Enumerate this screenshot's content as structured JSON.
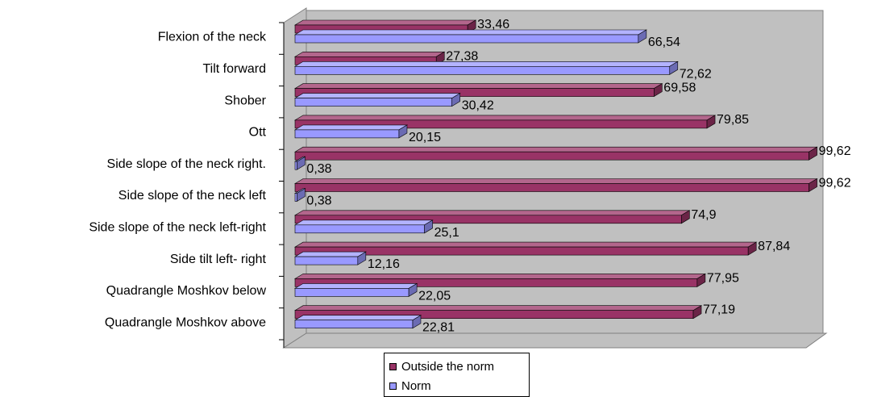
{
  "chart_data": {
    "type": "bar",
    "orientation": "horizontal",
    "style": "3d-clustered",
    "categories": [
      "Flexion of the neck",
      "Tilt forward",
      "Shober",
      "Ott",
      "Side slope of the neck right.",
      "Side slope of the neck left",
      "Side slope of the neck left-right",
      "Side tilt left- right",
      "Quadrangle Moshkov below",
      "Quadrangle Moshkov above"
    ],
    "series": [
      {
        "name": "Outside the norm",
        "color": "#993366",
        "values": [
          33.46,
          27.38,
          69.58,
          79.85,
          99.62,
          99.62,
          74.9,
          87.84,
          77.95,
          77.19
        ],
        "labels": [
          "33,46",
          "27,38",
          "69,58",
          "79,85",
          "99,62",
          "99,62",
          "74,9",
          "87,84",
          "77,95",
          "77,19"
        ]
      },
      {
        "name": "Norm",
        "color": "#9999ff",
        "values": [
          66.54,
          72.62,
          30.42,
          20.15,
          0.38,
          0.38,
          25.1,
          12.16,
          22.05,
          22.81
        ],
        "labels": [
          "66,54",
          "72,62",
          "30,42",
          "20,15",
          "0,38",
          "0,38",
          "25,1",
          "12,16",
          "22,05",
          "22,81"
        ]
      }
    ],
    "xlim": [
      0,
      100
    ],
    "grid": false,
    "legend": "bottom"
  }
}
